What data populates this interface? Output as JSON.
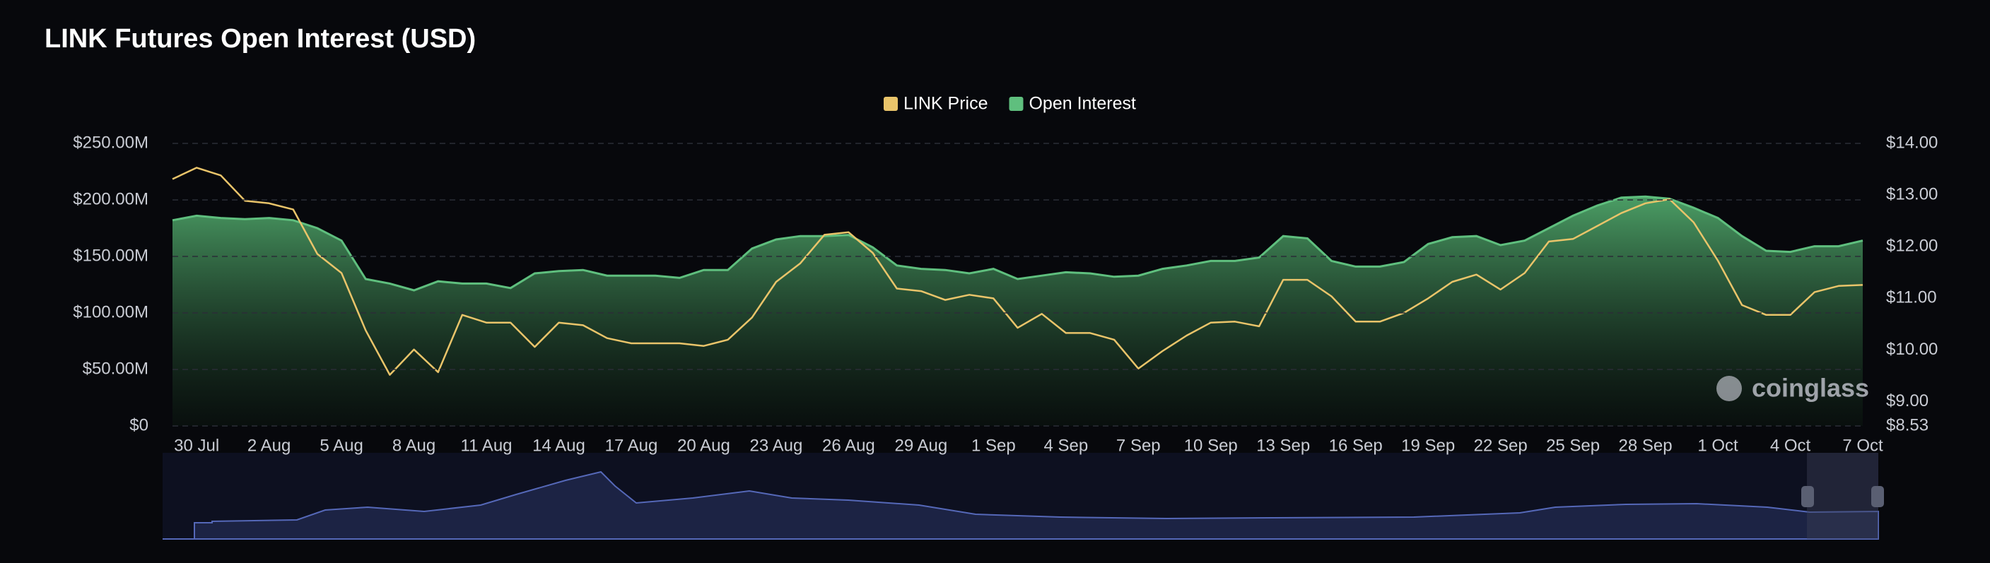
{
  "chart_data": {
    "type": "line",
    "title": "LINK Futures Open Interest (USD)",
    "watermark": "coinglass",
    "categories": [
      null,
      "30 Jul",
      null,
      null,
      "2 Aug",
      null,
      null,
      "5 Aug",
      null,
      null,
      "8 Aug",
      null,
      null,
      "11 Aug",
      null,
      null,
      "14 Aug",
      null,
      null,
      "17 Aug",
      null,
      null,
      "20 Aug",
      null,
      null,
      "23 Aug",
      null,
      null,
      "26 Aug",
      null,
      null,
      "29 Aug",
      null,
      null,
      "1 Sep",
      null,
      null,
      "4 Sep",
      null,
      null,
      "7 Sep",
      null,
      null,
      "10 Sep",
      null,
      null,
      "13 Sep",
      null,
      null,
      "16 Sep",
      null,
      null,
      "19 Sep",
      null,
      null,
      "22 Sep",
      null,
      null,
      "25 Sep",
      null,
      null,
      "28 Sep",
      null,
      null,
      "1 Oct",
      null,
      null,
      "4 Oct",
      null,
      null,
      "7 Oct"
    ],
    "series": [
      {
        "name": "LINK Price",
        "color": "#e9c46a",
        "axis": "y2",
        "values": [
          13.31,
          13.53,
          13.38,
          12.89,
          12.84,
          12.72,
          11.86,
          11.49,
          10.38,
          9.52,
          10.01,
          9.57,
          10.68,
          10.53,
          10.53,
          10.06,
          10.53,
          10.48,
          10.23,
          10.13,
          10.13,
          10.13,
          10.08,
          10.2,
          10.63,
          11.32,
          11.68,
          12.23,
          12.28,
          11.88,
          11.19,
          11.14,
          10.97,
          11.07,
          11.0,
          10.43,
          10.7,
          10.33,
          10.33,
          10.2,
          9.64,
          9.98,
          10.28,
          10.53,
          10.55,
          10.46,
          11.36,
          11.36,
          11.04,
          10.55,
          10.55,
          10.72,
          11.0,
          11.32,
          11.46,
          11.17,
          11.49,
          12.1,
          12.15,
          12.4,
          12.65,
          12.84,
          12.92,
          12.47,
          11.73,
          10.87,
          10.68,
          10.68,
          11.12,
          11.24,
          11.26
        ]
      },
      {
        "name": "Open Interest",
        "color": "#5fbf7e",
        "values": [
          182,
          186,
          184,
          183,
          184,
          182,
          175,
          164,
          130,
          126,
          120,
          128,
          126,
          126,
          122,
          135,
          137,
          138,
          133,
          133,
          133,
          131,
          138,
          138,
          157,
          165,
          168,
          168,
          169,
          158,
          142,
          139,
          138,
          135,
          139,
          130,
          133,
          136,
          135,
          132,
          133,
          139,
          142,
          146,
          146,
          149,
          168,
          166,
          146,
          141,
          141,
          145,
          161,
          167,
          168,
          160,
          164,
          175,
          186,
          195,
          202,
          203,
          201,
          193,
          184,
          168,
          155,
          154,
          159,
          159,
          164
        ]
      }
    ],
    "ylim": [
      0,
      250
    ],
    "yticks": [
      {
        "value": 0,
        "label": "$0"
      },
      {
        "value": 50,
        "label": "$50.00M"
      },
      {
        "value": 100,
        "label": "$100.00M"
      },
      {
        "value": 150,
        "label": "$150.00M"
      },
      {
        "value": 200,
        "label": "$200.00M"
      },
      {
        "value": 250,
        "label": "$250.00M"
      }
    ],
    "y2lim": [
      8.53,
      14
    ],
    "y2ticks": [
      {
        "value": 8.53,
        "label": "$8.53"
      },
      {
        "value": 9,
        "label": "$9.00"
      },
      {
        "value": 10,
        "label": "$10.00"
      },
      {
        "value": 11,
        "label": "$11.00"
      },
      {
        "value": 12,
        "label": "$12.00"
      },
      {
        "value": 13,
        "label": "$13.00"
      },
      {
        "value": 14,
        "label": "$14.00"
      }
    ],
    "grid": true,
    "legend": "top"
  }
}
